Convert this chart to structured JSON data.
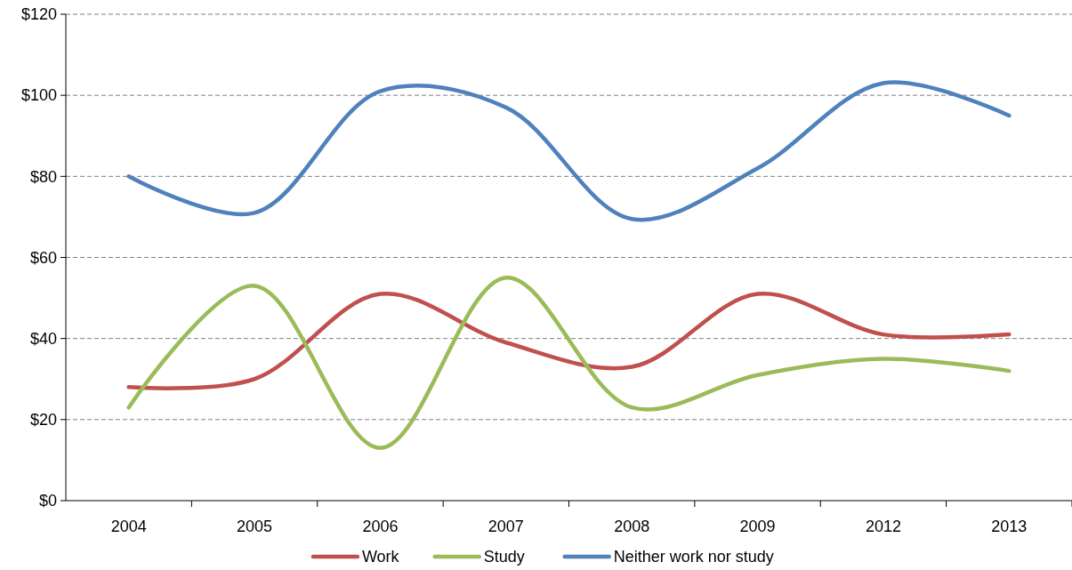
{
  "chart_data": {
    "type": "line",
    "categories": [
      "2004",
      "2005",
      "2006",
      "2007",
      "2008",
      "2009",
      "2012",
      "2013"
    ],
    "series": [
      {
        "name": "Work",
        "color": "#c0504d",
        "values": [
          28,
          30,
          51,
          39,
          33,
          51,
          41,
          41
        ]
      },
      {
        "name": "Study",
        "color": "#9bbb59",
        "values": [
          23,
          53,
          13,
          55,
          23,
          31,
          35,
          32
        ]
      },
      {
        "name": "Neither work nor study",
        "color": "#4f81bd",
        "values": [
          80,
          71,
          101,
          97,
          69.5,
          82,
          103,
          95
        ]
      }
    ],
    "ylim": [
      0,
      120
    ],
    "yticks": [
      {
        "value": 0,
        "label": "$0"
      },
      {
        "value": 20,
        "label": "$20"
      },
      {
        "value": 40,
        "label": "$40"
      },
      {
        "value": 60,
        "label": "$60"
      },
      {
        "value": 80,
        "label": "$80"
      },
      {
        "value": 100,
        "label": "$100"
      },
      {
        "value": 120,
        "label": "$120"
      }
    ],
    "grid": "y",
    "legend": "bottom",
    "marker": "none",
    "line_style": "solid"
  }
}
